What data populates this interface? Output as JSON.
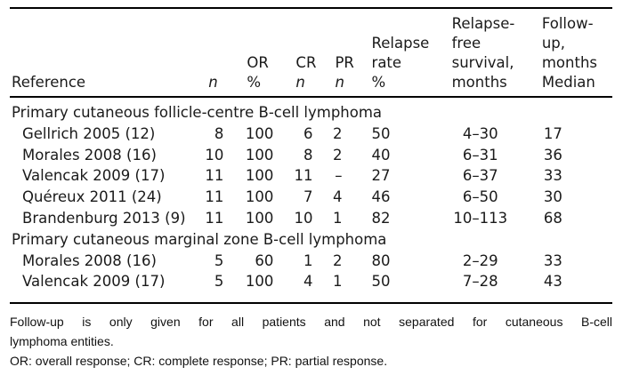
{
  "table": {
    "headers": {
      "reference": "Reference",
      "n": "n",
      "or": [
        "OR",
        "%"
      ],
      "cr": [
        "CR",
        "n"
      ],
      "pr": [
        "PR",
        "n"
      ],
      "relapse_rate": [
        "Relapse",
        "rate",
        "%"
      ],
      "relapse_free_survival": [
        "Relapse-",
        "free",
        "survival,",
        "months"
      ],
      "follow_up": [
        "Follow-",
        "up,",
        "months",
        "Median"
      ]
    },
    "sections": [
      {
        "title": "Primary cutaneous follicle-centre B-cell lymphoma",
        "rows": [
          {
            "ref": "Gellrich 2005 (12)",
            "n": "8",
            "or_pct": "100",
            "cr_n": "6",
            "pr_n": "2",
            "relapse_pct": "50",
            "rfs": "4–30",
            "fu": "17"
          },
          {
            "ref": "Morales 2008 (16)",
            "n": "10",
            "or_pct": "100",
            "cr_n": "8",
            "pr_n": "2",
            "relapse_pct": "40",
            "rfs": "6–31",
            "fu": "36"
          },
          {
            "ref": "Valencak 2009 (17)",
            "n": "11",
            "or_pct": "100",
            "cr_n": "11",
            "pr_n": "–",
            "relapse_pct": "27",
            "rfs": "6–37",
            "fu": "33"
          },
          {
            "ref": "Quéreux 2011 (24)",
            "n": "11",
            "or_pct": "100",
            "cr_n": "7",
            "pr_n": "4",
            "relapse_pct": "46",
            "rfs": "6–50",
            "fu": "30"
          },
          {
            "ref": "Brandenburg 2013 (9)",
            "n": "11",
            "or_pct": "100",
            "cr_n": "10",
            "pr_n": "1",
            "relapse_pct": "82",
            "rfs": "10–113",
            "fu": "68"
          }
        ]
      },
      {
        "title": "Primary cutaneous marginal zone B-cell lymphoma",
        "rows": [
          {
            "ref": "Morales 2008 (16)",
            "n": "5",
            "or_pct": "60",
            "cr_n": "1",
            "pr_n": "2",
            "relapse_pct": "80",
            "rfs": "2–29",
            "fu": "33"
          },
          {
            "ref": "Valencak 2009 (17)",
            "n": "5",
            "or_pct": "100",
            "cr_n": "4",
            "pr_n": "1",
            "relapse_pct": "50",
            "rfs": "7–28",
            "fu": "43"
          }
        ]
      }
    ]
  },
  "footnotes": {
    "line1a": "Follow-up is only given for all patients and not separated for cutaneous B-cell",
    "line1b": "lymphoma entities.",
    "line2": "OR: overall response; CR: complete response; PR: partial response."
  }
}
